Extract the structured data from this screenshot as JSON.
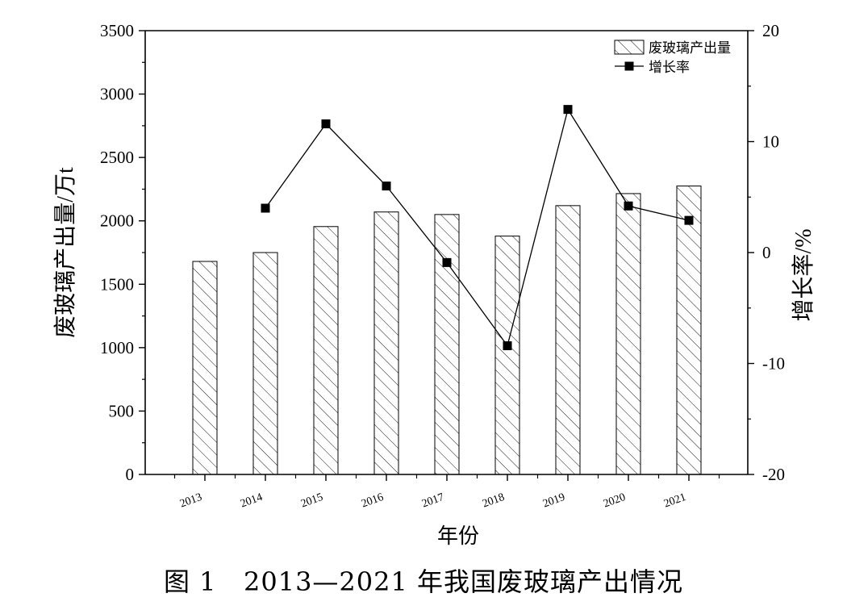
{
  "caption": "图 1   2013—2021 年我国废玻璃产出情况",
  "chart_data": {
    "type": "bar",
    "categories": [
      "2013",
      "2014",
      "2015",
      "2016",
      "2017",
      "2018",
      "2019",
      "2020",
      "2021"
    ],
    "xlabel": "年份",
    "ylabel": "废玻璃产出量/万t",
    "y2label": "增长率/%",
    "ylim": [
      0,
      3500
    ],
    "yticks": [
      0,
      500,
      1000,
      1500,
      2000,
      2500,
      3000,
      3500
    ],
    "y2lim": [
      -20,
      20
    ],
    "y2ticks": [
      -20,
      -10,
      0,
      10,
      20
    ],
    "grid": false,
    "legend_position": "top-right",
    "series": [
      {
        "name": "废玻璃产出量",
        "kind": "bar",
        "axis": "left",
        "fill": "hatched",
        "values": [
          1680,
          1750,
          1955,
          2070,
          2050,
          1880,
          2120,
          2215,
          2275
        ]
      },
      {
        "name": "增长率",
        "kind": "line",
        "axis": "right",
        "marker": "square",
        "values": [
          null,
          4.0,
          11.6,
          6.0,
          -0.9,
          -8.4,
          12.9,
          4.2,
          2.9
        ]
      }
    ],
    "colors": {
      "ink": "#000000",
      "background": "#ffffff"
    }
  }
}
